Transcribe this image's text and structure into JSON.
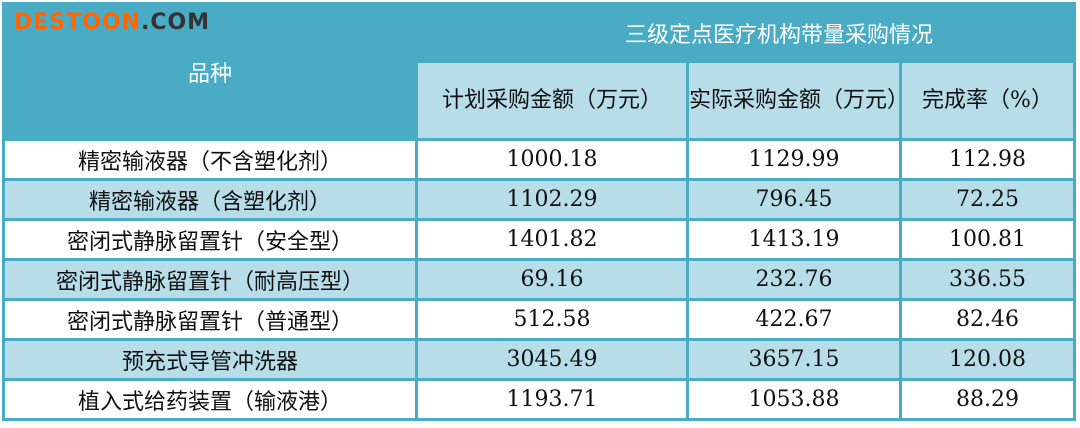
{
  "header": {
    "variety": "品种",
    "group": "三级定点医疗机构带量采购情况",
    "columns": [
      "计划采购金额（万元）",
      "实际采购金额（万元）",
      "完成率（%）"
    ]
  },
  "rows": [
    {
      "name": "精密输液器（不含塑化剂）",
      "plan": "1000.18",
      "actual": "1129.99",
      "rate": "112.98"
    },
    {
      "name": "精密输液器（含塑化剂）",
      "plan": "1102.29",
      "actual": "796.45",
      "rate": "72.25"
    },
    {
      "name": "密闭式静脉留置针（安全型）",
      "plan": "1401.82",
      "actual": "1413.19",
      "rate": "100.81"
    },
    {
      "name": "密闭式静脉留置针（耐高压型）",
      "plan": "69.16",
      "actual": "232.76",
      "rate": "336.55"
    },
    {
      "name": "密闭式静脉留置针（普通型）",
      "plan": "512.58",
      "actual": "422.67",
      "rate": "82.46"
    },
    {
      "name": "预充式导管冲洗器",
      "plan": "3045.49",
      "actual": "3657.15",
      "rate": "120.08"
    },
    {
      "name": "植入式给药装置（输液港）",
      "plan": "1193.71",
      "actual": "1053.88",
      "rate": "88.29"
    }
  ],
  "watermark": {
    "brand": "DESTOON",
    ".com": ".COM"
  }
}
